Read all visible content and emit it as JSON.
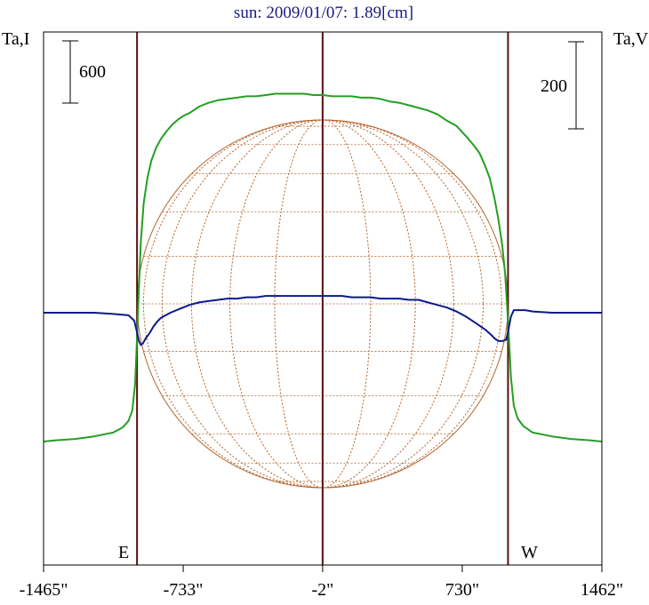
{
  "chart_data": {
    "type": "line",
    "title": "sun: 2009/01/07: 1.89[cm]",
    "left_axis_label": "Ta,I",
    "right_axis_label": "Ta,V",
    "left_scale_bar_label": "600",
    "right_scale_bar_label": "200",
    "east_label": "E",
    "west_label": "W",
    "x_tick_labels": [
      "-1465\"",
      "-733\"",
      "-2\"",
      "730\"",
      "1462\""
    ],
    "x_ticks": [
      -1465,
      -733,
      -2,
      730,
      1462
    ],
    "xlim": [
      -1465,
      1462
    ],
    "vertical_lines_x": [
      -975,
      -2,
      970
    ],
    "solar_disk": {
      "center_x": -2,
      "radius": 972
    },
    "colors": {
      "stokes_I": "#22a022",
      "stokes_V": "#0a1a8c",
      "vertical_lines": "#5a1010",
      "grid": "#b5652e",
      "title": "#1a1a80"
    },
    "series": [
      {
        "key": "I",
        "color": "#22a022",
        "x": [
          -1465,
          -1400,
          -1300,
          -1200,
          -1100,
          -1050,
          -1020,
          -1000,
          -985,
          -975,
          -965,
          -955,
          -940,
          -920,
          -900,
          -875,
          -850,
          -820,
          -790,
          -760,
          -730,
          -700,
          -650,
          -600,
          -550,
          -500,
          -450,
          -400,
          -350,
          -300,
          -250,
          -200,
          -150,
          -100,
          -50,
          0,
          50,
          100,
          150,
          200,
          250,
          300,
          350,
          400,
          450,
          500,
          550,
          600,
          650,
          700,
          750,
          790,
          820,
          850,
          875,
          900,
          920,
          940,
          955,
          965,
          975,
          985,
          1000,
          1020,
          1050,
          1100,
          1200,
          1300,
          1400,
          1462
        ],
        "y": [
          -1.0,
          -0.99,
          -0.98,
          -0.96,
          -0.93,
          -0.89,
          -0.84,
          -0.76,
          -0.55,
          -0.2,
          0.2,
          0.55,
          0.85,
          1.05,
          1.18,
          1.28,
          1.35,
          1.41,
          1.46,
          1.5,
          1.53,
          1.55,
          1.6,
          1.63,
          1.65,
          1.66,
          1.67,
          1.68,
          1.68,
          1.69,
          1.7,
          1.7,
          1.7,
          1.7,
          1.69,
          1.69,
          1.68,
          1.68,
          1.68,
          1.67,
          1.67,
          1.66,
          1.64,
          1.63,
          1.61,
          1.59,
          1.57,
          1.54,
          1.49,
          1.45,
          1.37,
          1.3,
          1.24,
          1.14,
          1.04,
          0.88,
          0.72,
          0.52,
          0.3,
          0.05,
          -0.2,
          -0.5,
          -0.72,
          -0.82,
          -0.88,
          -0.93,
          -0.96,
          -0.98,
          -0.99,
          -1.0
        ]
      },
      {
        "key": "V",
        "color": "#0a1a8c",
        "x": [
          -1465,
          -1400,
          -1300,
          -1200,
          -1100,
          -1020,
          -990,
          -975,
          -965,
          -955,
          -945,
          -930,
          -910,
          -890,
          -870,
          -850,
          -800,
          -750,
          -700,
          -650,
          -600,
          -550,
          -500,
          -450,
          -400,
          -350,
          -300,
          -250,
          -200,
          -150,
          -100,
          -50,
          0,
          50,
          100,
          150,
          200,
          250,
          300,
          350,
          400,
          450,
          500,
          550,
          600,
          650,
          700,
          750,
          800,
          850,
          880,
          900,
          920,
          940,
          960,
          970,
          985,
          1000,
          1020,
          1060,
          1100,
          1200,
          1300,
          1400,
          1462
        ],
        "y": [
          0.0,
          0.0,
          0.0,
          0.0,
          -0.01,
          -0.02,
          -0.06,
          -0.15,
          -0.22,
          -0.25,
          -0.24,
          -0.2,
          -0.16,
          -0.11,
          -0.07,
          -0.04,
          0.0,
          0.03,
          0.06,
          0.08,
          0.09,
          0.1,
          0.11,
          0.11,
          0.12,
          0.12,
          0.13,
          0.13,
          0.13,
          0.13,
          0.13,
          0.13,
          0.13,
          0.13,
          0.13,
          0.12,
          0.12,
          0.12,
          0.11,
          0.11,
          0.11,
          0.1,
          0.1,
          0.08,
          0.06,
          0.04,
          0.01,
          -0.03,
          -0.08,
          -0.13,
          -0.17,
          -0.2,
          -0.22,
          -0.22,
          -0.21,
          -0.15,
          -0.03,
          0.02,
          0.02,
          0.02,
          0.01,
          0.0,
          0.0,
          0.0,
          0.0
        ]
      }
    ]
  }
}
